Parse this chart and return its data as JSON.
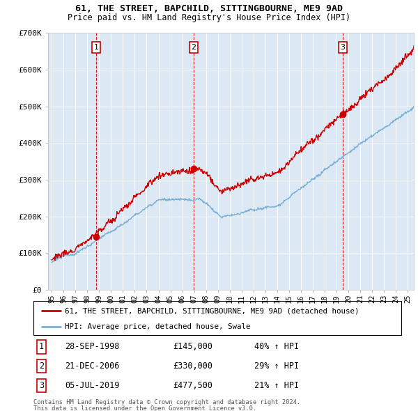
{
  "title1": "61, THE STREET, BAPCHILD, SITTINGBOURNE, ME9 9AD",
  "title2": "Price paid vs. HM Land Registry's House Price Index (HPI)",
  "legend_line1": "61, THE STREET, BAPCHILD, SITTINGBOURNE, ME9 9AD (detached house)",
  "legend_line2": "HPI: Average price, detached house, Swale",
  "footer1": "Contains HM Land Registry data © Crown copyright and database right 2024.",
  "footer2": "This data is licensed under the Open Government Licence v3.0.",
  "sale_color": "#cc0000",
  "hpi_color": "#7aafd4",
  "background_color": "#dce9f5",
  "sale_dates": [
    1998.74,
    2006.97,
    2019.51
  ],
  "sale_prices": [
    145000,
    330000,
    477500
  ],
  "sale_labels": [
    "1",
    "2",
    "3"
  ],
  "table_rows": [
    [
      "1",
      "28-SEP-1998",
      "£145,000",
      "40% ↑ HPI"
    ],
    [
      "2",
      "21-DEC-2006",
      "£330,000",
      "29% ↑ HPI"
    ],
    [
      "3",
      "05-JUL-2019",
      "£477,500",
      "21% ↑ HPI"
    ]
  ],
  "ylim": [
    0,
    700000
  ],
  "xlim": [
    1994.7,
    2025.5
  ],
  "yticks": [
    0,
    100000,
    200000,
    300000,
    400000,
    500000,
    600000,
    700000
  ],
  "ytick_labels": [
    "£0",
    "£100K",
    "£200K",
    "£300K",
    "£400K",
    "£500K",
    "£600K",
    "£700K"
  ],
  "xtick_years": [
    1995,
    1996,
    1997,
    1998,
    1999,
    2000,
    2001,
    2002,
    2003,
    2004,
    2005,
    2006,
    2007,
    2008,
    2009,
    2010,
    2011,
    2012,
    2013,
    2014,
    2015,
    2016,
    2017,
    2018,
    2019,
    2020,
    2021,
    2022,
    2023,
    2024,
    2025
  ],
  "xtick_labels": [
    "95",
    "96",
    "97",
    "98",
    "99",
    "00",
    "01",
    "02",
    "03",
    "04",
    "05",
    "06",
    "07",
    "08",
    "09",
    "10",
    "11",
    "12",
    "13",
    "14",
    "15",
    "16",
    "17",
    "18",
    "19",
    "20",
    "21",
    "22",
    "23",
    "24",
    "25"
  ]
}
